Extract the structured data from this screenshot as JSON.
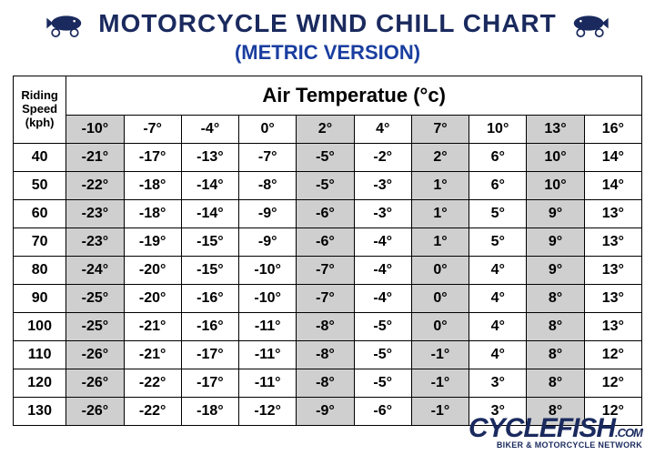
{
  "header": {
    "title": "MOTORCYCLE WIND CHILL CHART",
    "subtitle": "(METRIC VERSION)"
  },
  "table": {
    "type": "table",
    "row_header_label": "Riding Speed (kph)",
    "column_header_label": "Air Temperatue (°c)",
    "temp_columns": [
      "-10°",
      "-7°",
      "-4°",
      "0°",
      "2°",
      "4°",
      "7°",
      "10°",
      "13°",
      "16°"
    ],
    "speeds": [
      "40",
      "50",
      "60",
      "70",
      "80",
      "90",
      "100",
      "110",
      "120",
      "130"
    ],
    "rows": [
      [
        "-21°",
        "-17°",
        "-13°",
        "-7°",
        "-5°",
        "-2°",
        "2°",
        "6°",
        "10°",
        "14°"
      ],
      [
        "-22°",
        "-18°",
        "-14°",
        "-8°",
        "-5°",
        "-3°",
        "1°",
        "6°",
        "10°",
        "14°"
      ],
      [
        "-23°",
        "-18°",
        "-14°",
        "-9°",
        "-6°",
        "-3°",
        "1°",
        "5°",
        "9°",
        "13°"
      ],
      [
        "-23°",
        "-19°",
        "-15°",
        "-9°",
        "-6°",
        "-4°",
        "1°",
        "5°",
        "9°",
        "13°"
      ],
      [
        "-24°",
        "-20°",
        "-15°",
        "-10°",
        "-7°",
        "-4°",
        "0°",
        "4°",
        "9°",
        "13°"
      ],
      [
        "-25°",
        "-20°",
        "-16°",
        "-10°",
        "-7°",
        "-4°",
        "0°",
        "4°",
        "8°",
        "13°"
      ],
      [
        "-25°",
        "-21°",
        "-16°",
        "-11°",
        "-8°",
        "-5°",
        "0°",
        "4°",
        "8°",
        "13°"
      ],
      [
        "-26°",
        "-21°",
        "-17°",
        "-11°",
        "-8°",
        "-5°",
        "-1°",
        "4°",
        "8°",
        "12°"
      ],
      [
        "-26°",
        "-22°",
        "-17°",
        "-11°",
        "-8°",
        "-5°",
        "-1°",
        "3°",
        "8°",
        "12°"
      ],
      [
        "-26°",
        "-22°",
        "-18°",
        "-12°",
        "-9°",
        "-6°",
        "-1°",
        "3°",
        "8°",
        "12°"
      ]
    ],
    "shaded_temp_columns": [
      true,
      false,
      false,
      false,
      true,
      false,
      true,
      false,
      true,
      false
    ],
    "colors": {
      "title_color": "#1a2a5e",
      "subtitle_color": "#1a3ea0",
      "border_color": "#000000",
      "shaded_bg": "#cfcfcf",
      "unshaded_bg": "#ffffff",
      "text_color": "#000000"
    },
    "font_sizes_pt": {
      "title": 21,
      "subtitle": 17,
      "air_header": 17,
      "cells": 12,
      "row_header": 10
    }
  },
  "footer": {
    "brand": "CYCLEFISH",
    "brand_suffix": ".COM",
    "tagline": "BIKER & MOTORCYCLE NETWORK"
  }
}
